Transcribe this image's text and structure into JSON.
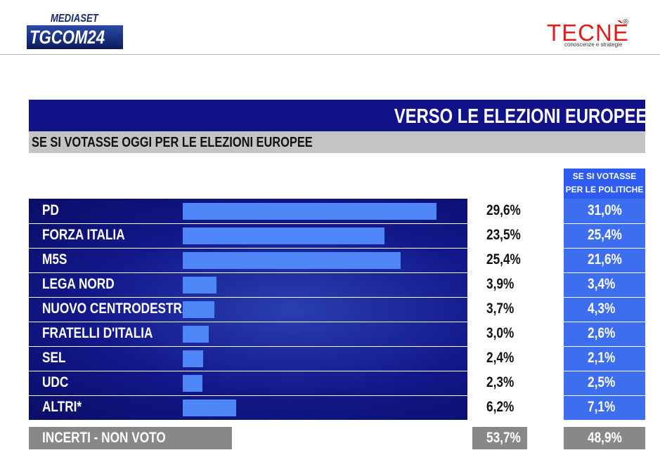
{
  "header": {
    "brand": "MEDIASET",
    "logo": "TGCOM24",
    "pollster": "TECNÈ",
    "pollster_mark": "®",
    "pollster_tagline": "conoscenze e strategie"
  },
  "chart_data": {
    "type": "bar",
    "title": "VERSO LE ELEZIONI EUROPEE",
    "subtitle": "SE SI VOTASSE OGGI PER LE ELEZIONI EUROPEE",
    "categories": [
      "PD",
      "FORZA ITALIA",
      "M5S",
      "LEGA NORD",
      "NUOVO CENTRODESTRA",
      "FRATELLI D'ITALIA",
      "SEL",
      "UDC",
      "ALTRI*"
    ],
    "values": [
      29.6,
      23.5,
      25.4,
      3.9,
      3.7,
      3.0,
      2.4,
      2.3,
      6.2
    ],
    "value_labels": [
      "29,6%",
      "23,5%",
      "25,4%",
      "3,9%",
      "3,7%",
      "3,0%",
      "2,4%",
      "2,3%",
      "6,2%"
    ],
    "color": "#4f86f7",
    "comparison": {
      "title": "SE SI VOTASSE PER LE POLITICHE",
      "values": [
        31.0,
        25.4,
        21.6,
        3.4,
        4.3,
        2.6,
        2.1,
        2.5,
        7.1
      ],
      "value_labels": [
        "31,0%",
        "25,4%",
        "21,6%",
        "3,4%",
        "4,3%",
        "2,6%",
        "2,1%",
        "2,5%",
        "7,1%"
      ]
    },
    "undecided": {
      "label": "INCERTI - NON VOTO",
      "value": 53.7,
      "value_label": "53,7%",
      "comparison_value": 48.9,
      "comparison_label": "48,9%"
    }
  }
}
